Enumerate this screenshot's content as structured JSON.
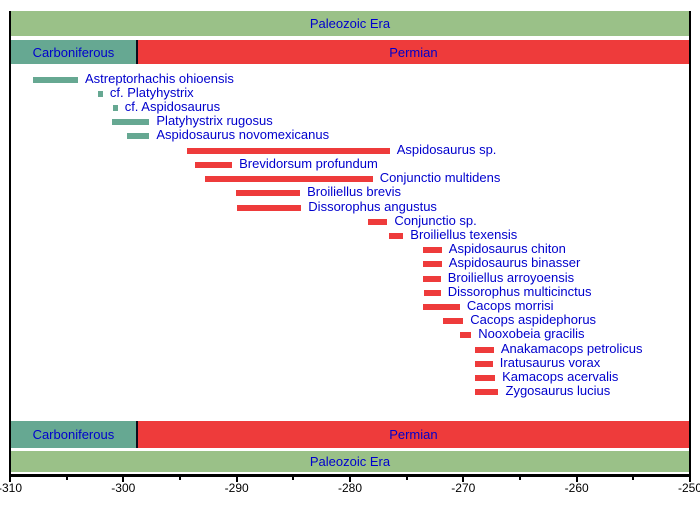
{
  "colors": {
    "background": "#FFFFFF",
    "era_green": "#9AC188",
    "carboniferous_teal": "#66A892",
    "permian_red": "#EE3B3B",
    "label_blue": "#0000CD",
    "axis_black": "#000000",
    "divider_dark": "#0B0B1A"
  },
  "chart_data": {
    "type": "bar",
    "subtype": "stratigraphic-taxon-range-timeline",
    "title": "",
    "xlabel": "",
    "ylabel": "",
    "x_range": [
      -310,
      -250
    ],
    "grid": false,
    "x_major_ticks": [
      -310,
      -300,
      -290,
      -280,
      -270,
      -260,
      -250
    ],
    "x_tick_labels": [
      "-310",
      "-300",
      "-290",
      "-280",
      "-270",
      "-260",
      "-250"
    ],
    "x_minor_ticks": [
      -305,
      -295,
      -285,
      -275,
      -265,
      -255
    ],
    "era": {
      "label": "Paleozoic Era",
      "start": -310,
      "end": -250
    },
    "periods": [
      {
        "label": "Carboniferous",
        "start": -310,
        "end": -298.9,
        "color": "carboniferous_teal"
      },
      {
        "label": "Permian",
        "start": -298.9,
        "end": -250,
        "color": "permian_red"
      }
    ],
    "taxa": [
      {
        "name": "Astreptorhachis ohioensis",
        "start": -308.0,
        "end": -304.0,
        "color": "carboniferous_teal"
      },
      {
        "name": "cf. Platyhystrix",
        "start": -302.2,
        "end": -301.8,
        "color": "carboniferous_teal"
      },
      {
        "name": "cf. Aspidosaurus",
        "start": -300.9,
        "end": -300.5,
        "color": "carboniferous_teal"
      },
      {
        "name": "Platyhystrix rugosus",
        "start": -301.0,
        "end": -297.7,
        "color": "carboniferous_teal"
      },
      {
        "name": "Aspidosaurus novomexicanus",
        "start": -299.7,
        "end": -297.7,
        "color": "carboniferous_teal"
      },
      {
        "name": "Aspidosaurus sp.",
        "start": -294.4,
        "end": -276.5,
        "color": "permian_red"
      },
      {
        "name": "Brevidorsum profundum",
        "start": -293.7,
        "end": -290.4,
        "color": "permian_red"
      },
      {
        "name": "Conjunctio multidens",
        "start": -292.8,
        "end": -278.0,
        "color": "permian_red"
      },
      {
        "name": "Broiliellus brevis",
        "start": -290.1,
        "end": -284.4,
        "color": "permian_red"
      },
      {
        "name": "Dissorophus angustus",
        "start": -290.0,
        "end": -284.3,
        "color": "permian_red"
      },
      {
        "name": "Conjunctio sp.",
        "start": -278.4,
        "end": -276.7,
        "color": "permian_red"
      },
      {
        "name": "Broiliellus texensis",
        "start": -276.6,
        "end": -275.3,
        "color": "permian_red"
      },
      {
        "name": "Aspidosaurus chiton",
        "start": -273.6,
        "end": -271.9,
        "color": "permian_red"
      },
      {
        "name": "Aspidosaurus binasser",
        "start": -273.6,
        "end": -271.9,
        "color": "permian_red"
      },
      {
        "name": "Broiliellus arroyoensis",
        "start": -273.6,
        "end": -272.0,
        "color": "permian_red"
      },
      {
        "name": "Dissorophus multicinctus",
        "start": -273.5,
        "end": -272.0,
        "color": "permian_red"
      },
      {
        "name": "Cacops morrisi",
        "start": -273.6,
        "end": -270.3,
        "color": "permian_red"
      },
      {
        "name": "Cacops aspidephorus",
        "start": -271.8,
        "end": -270.0,
        "color": "permian_red"
      },
      {
        "name": "Nooxobeia gracilis",
        "start": -270.3,
        "end": -269.3,
        "color": "permian_red"
      },
      {
        "name": "Anakamacops petrolicus",
        "start": -269.0,
        "end": -267.3,
        "color": "permian_red"
      },
      {
        "name": "Iratusaurus vorax",
        "start": -269.0,
        "end": -267.4,
        "color": "permian_red"
      },
      {
        "name": "Kamacops acervalis",
        "start": -269.0,
        "end": -267.2,
        "color": "permian_red"
      },
      {
        "name": "Zygosaurus lucius",
        "start": -269.0,
        "end": -266.9,
        "color": "permian_red"
      }
    ]
  }
}
